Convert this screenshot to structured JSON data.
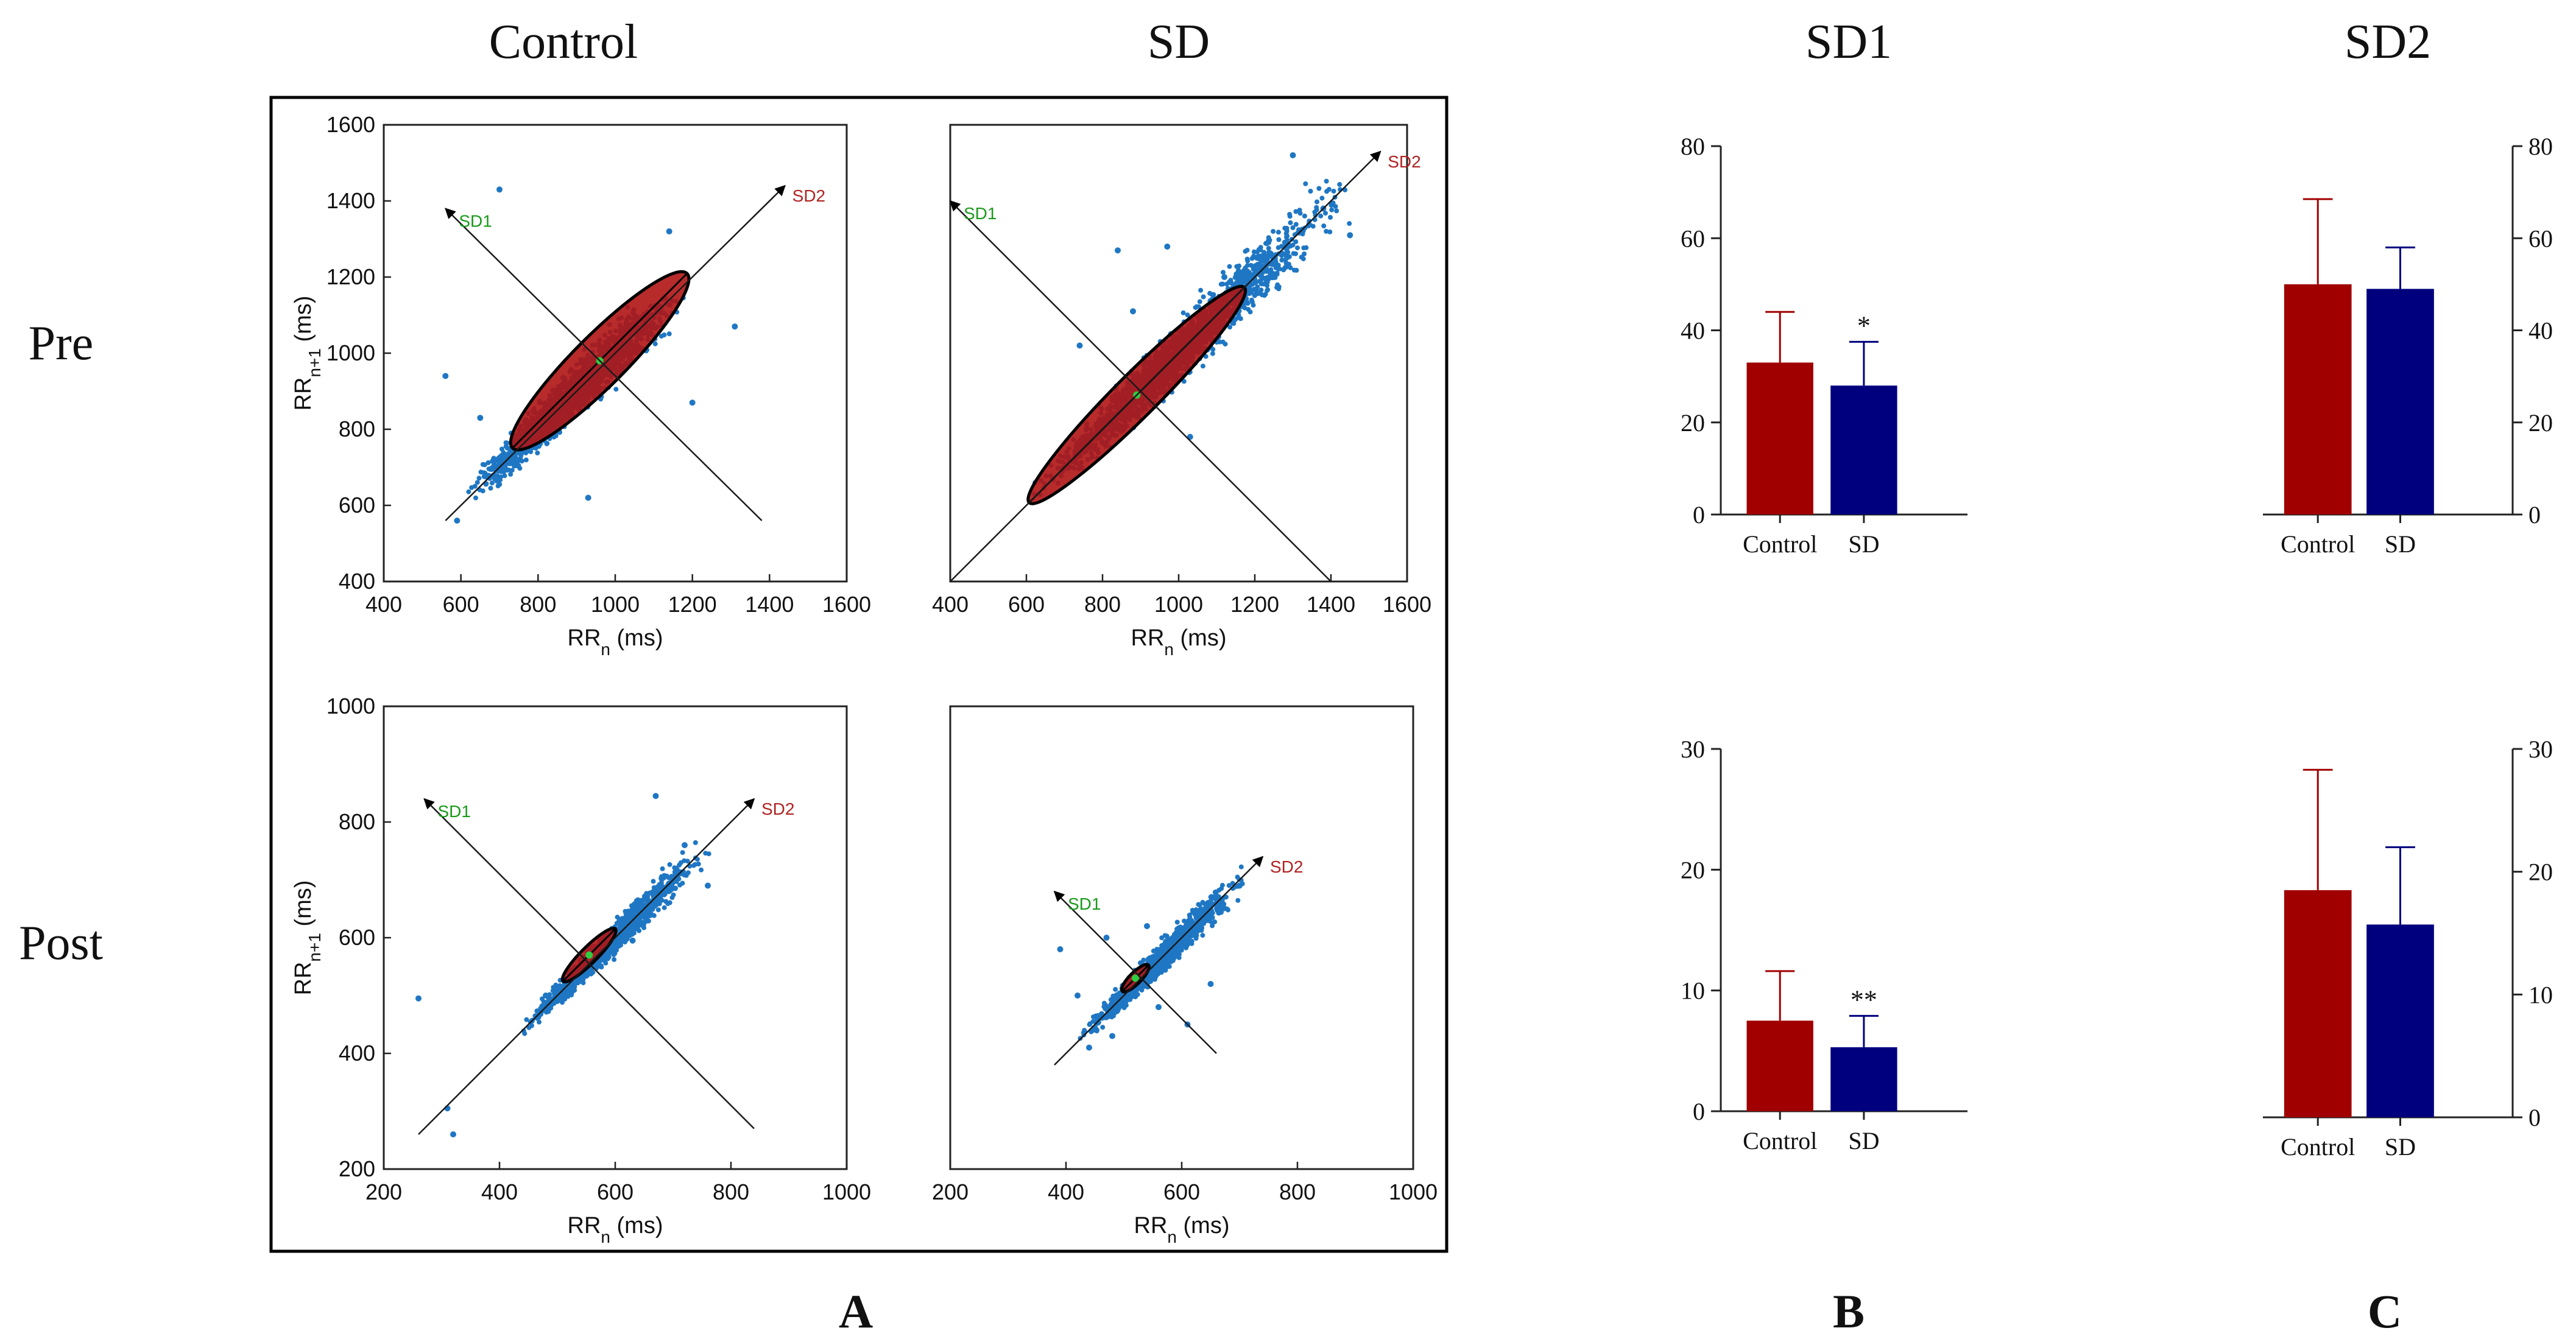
{
  "figure": {
    "column_headers": [
      "Control",
      "SD",
      "SD1",
      "SD2"
    ],
    "row_labels": [
      "Pre",
      "Post"
    ],
    "panel_labels": [
      "A",
      "B",
      "C"
    ]
  },
  "colors": {
    "control_bar": "#a00000",
    "sd_bar": "#00007e",
    "points": "#1f77c4",
    "sd1_label": "#1a9a1a",
    "sd2_label": "#b22222",
    "ellipse_fill": "#b01414",
    "axis": "#222222"
  },
  "chart_data": [
    {
      "id": "poincare-pre-control",
      "type": "scatter",
      "title": "Control - Pre",
      "xlabel": "RR",
      "xlabel_sub": "n",
      "xlabel_unit": " (ms)",
      "ylabel": "RR",
      "ylabel_sub": "n+1",
      "ylabel_unit": " (ms)",
      "xlim": [
        400,
        1600
      ],
      "ylim": [
        400,
        1600
      ],
      "xticks": [
        400,
        600,
        800,
        1000,
        1200,
        1400,
        1600
      ],
      "yticks": [
        400,
        600,
        800,
        1000,
        1200,
        1400,
        1600
      ],
      "show_yticks": true,
      "center": [
        960,
        980
      ],
      "sd1": 33,
      "sd2": 160,
      "cloud": {
        "t_min": 620,
        "t_max": 1200,
        "spread": 30,
        "n": 1900,
        "seed": 11
      },
      "outliers": [
        [
          700,
          1430
        ],
        [
          560,
          940
        ],
        [
          590,
          560
        ],
        [
          930,
          620
        ],
        [
          1200,
          870
        ],
        [
          1310,
          1070
        ],
        [
          650,
          830
        ],
        [
          1140,
          1320
        ]
      ],
      "sd1_arrow": [
        [
          1380,
          560
        ],
        [
          560,
          1380
        ]
      ],
      "sd2_arrow": [
        [
          560,
          560
        ],
        [
          1440,
          1440
        ]
      ],
      "sd1_label": "SD1",
      "sd2_label": "SD2"
    },
    {
      "id": "poincare-pre-sd",
      "type": "scatter",
      "title": "SD - Pre",
      "xlabel": "RR",
      "xlabel_sub": "n",
      "xlabel_unit": " (ms)",
      "ylabel": "",
      "ylabel_sub": "",
      "ylabel_unit": "",
      "xlim": [
        400,
        1600
      ],
      "ylim": [
        400,
        1600
      ],
      "xticks": [
        400,
        600,
        800,
        1000,
        1200,
        1400,
        1600
      ],
      "yticks": [],
      "show_yticks": false,
      "center": [
        890,
        890
      ],
      "sd1": 28,
      "sd2": 200,
      "cloud": {
        "t_min": 610,
        "t_max": 1500,
        "spread": 35,
        "n": 1900,
        "seed": 23
      },
      "outliers": [
        [
          1300,
          1520
        ],
        [
          1450,
          1310
        ],
        [
          840,
          1270
        ],
        [
          880,
          1110
        ],
        [
          980,
          1050
        ],
        [
          1030,
          780
        ],
        [
          740,
          1020
        ],
        [
          970,
          1280
        ],
        [
          1120,
          1200
        ],
        [
          1380,
          1380
        ]
      ],
      "sd1_arrow": [
        [
          1400,
          400
        ],
        [
          400,
          1400
        ]
      ],
      "sd2_arrow": [
        [
          400,
          400
        ],
        [
          1530,
          1530
        ]
      ],
      "sd1_label": "SD1",
      "sd2_label": "SD2"
    },
    {
      "id": "poincare-post-control",
      "type": "scatter",
      "title": "Control - Post",
      "xlabel": "RR",
      "xlabel_sub": "n",
      "xlabel_unit": " (ms)",
      "ylabel": "RR",
      "ylabel_sub": "n+1",
      "ylabel_unit": " (ms)",
      "xlim": [
        200,
        1000
      ],
      "ylim": [
        200,
        1000
      ],
      "xticks": [
        200,
        400,
        600,
        800,
        1000
      ],
      "yticks": [
        200,
        400,
        600,
        800,
        1000
      ],
      "show_yticks": true,
      "center": [
        555,
        570
      ],
      "sd1": 7,
      "sd2": 32,
      "cloud": {
        "t_min": 430,
        "t_max": 780,
        "spread": 12,
        "n": 1300,
        "seed": 37
      },
      "outliers": [
        [
          260,
          495
        ],
        [
          310,
          305
        ],
        [
          320,
          260
        ],
        [
          760,
          690
        ],
        [
          670,
          845
        ],
        [
          630,
          595
        ],
        [
          480,
          500
        ],
        [
          720,
          760
        ]
      ],
      "sd1_arrow": [
        [
          840,
          270
        ],
        [
          270,
          840
        ]
      ],
      "sd2_arrow": [
        [
          260,
          260
        ],
        [
          840,
          840
        ]
      ],
      "sd1_label": "SD1",
      "sd2_label": "SD2"
    },
    {
      "id": "poincare-post-sd",
      "type": "scatter",
      "title": "SD - Post",
      "xlabel": "RR",
      "xlabel_sub": "n",
      "xlabel_unit": " (ms)",
      "ylabel": "",
      "ylabel_sub": "",
      "ylabel_unit": "",
      "xlim": [
        200,
        1000
      ],
      "ylim": [
        200,
        1000
      ],
      "xticks": [
        200,
        400,
        600,
        800,
        1000
      ],
      "yticks": [],
      "show_yticks": false,
      "center": [
        520,
        530
      ],
      "sd1": 5,
      "sd2": 16,
      "cloud": {
        "t_min": 420,
        "t_max": 730,
        "spread": 12,
        "n": 1200,
        "seed": 53
      },
      "outliers": [
        [
          390,
          580
        ],
        [
          420,
          500
        ],
        [
          470,
          600
        ],
        [
          560,
          480
        ],
        [
          610,
          450
        ],
        [
          650,
          520
        ],
        [
          480,
          430
        ],
        [
          440,
          410
        ],
        [
          700,
          690
        ],
        [
          540,
          620
        ]
      ],
      "sd1_arrow": [
        [
          660,
          400
        ],
        [
          380,
          680
        ]
      ],
      "sd2_arrow": [
        [
          380,
          380
        ],
        [
          740,
          740
        ]
      ],
      "sd1_label": "SD1",
      "sd2_label": "SD2"
    },
    {
      "id": "bar-sd1-pre",
      "type": "bar",
      "title": "SD1 - Pre",
      "categories": [
        "Control",
        "SD"
      ],
      "values": [
        33,
        28
      ],
      "errors": [
        11,
        9.5
      ],
      "ylim": [
        0,
        80
      ],
      "yticks": [
        0,
        20,
        40,
        60,
        80
      ],
      "axis_side": "left",
      "annotations": [
        "",
        "*"
      ]
    },
    {
      "id": "bar-sd2-pre",
      "type": "bar",
      "title": "SD2 - Pre",
      "categories": [
        "Control",
        "SD"
      ],
      "values": [
        50,
        49
      ],
      "errors": [
        18.5,
        9
      ],
      "ylim": [
        0,
        80
      ],
      "yticks": [
        0,
        20,
        40,
        60,
        80
      ],
      "axis_side": "right",
      "annotations": [
        "",
        ""
      ]
    },
    {
      "id": "bar-sd1-post",
      "type": "bar",
      "title": "SD1 - Post",
      "categories": [
        "Control",
        "SD"
      ],
      "values": [
        7.5,
        5.3
      ],
      "errors": [
        4.1,
        2.6
      ],
      "ylim": [
        0,
        30
      ],
      "yticks": [
        0,
        10,
        20,
        30
      ],
      "axis_side": "left",
      "annotations": [
        "",
        "**"
      ]
    },
    {
      "id": "bar-sd2-post",
      "type": "bar",
      "title": "SD2 - Post",
      "categories": [
        "Control",
        "SD"
      ],
      "values": [
        18.5,
        15.7
      ],
      "errors": [
        9.8,
        6.3
      ],
      "ylim": [
        0,
        30
      ],
      "yticks": [
        0,
        10,
        20,
        30
      ],
      "axis_side": "right",
      "annotations": [
        "",
        ""
      ]
    }
  ]
}
